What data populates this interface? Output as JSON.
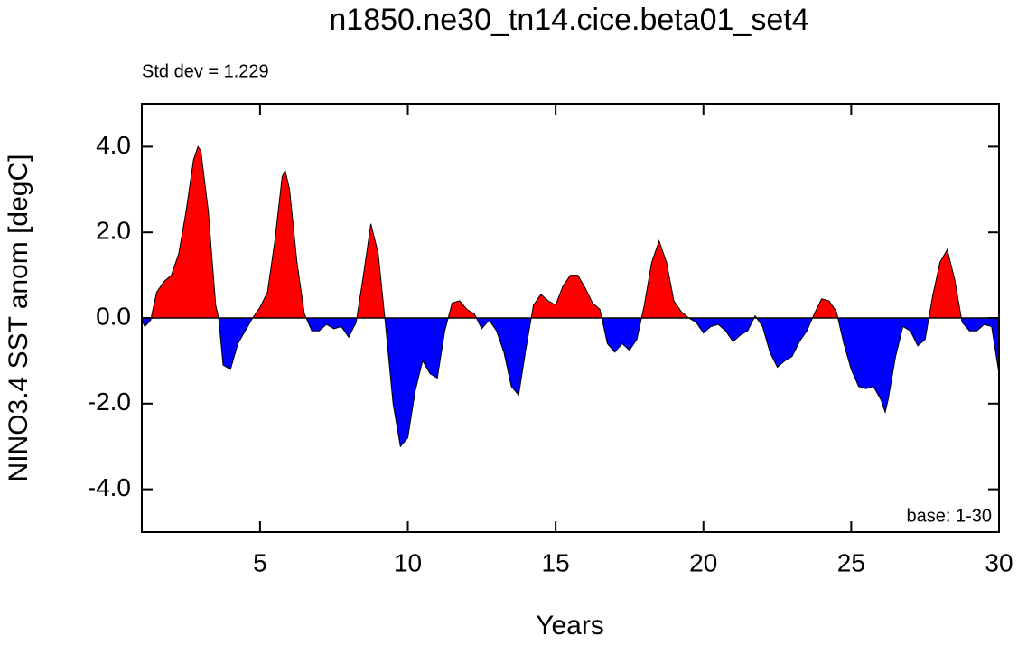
{
  "chart_data": {
    "type": "area",
    "title": "n1850.ne30_tn14.cice.beta01_set4",
    "x_label": "Years",
    "y_label": "NINO3.4 SST anom [degC]",
    "annotations": [
      "Std dev = 1.229",
      "base: 1-30"
    ],
    "xlim": [
      1,
      30
    ],
    "ylim": [
      -5,
      5
    ],
    "xticks": [
      5,
      10,
      15,
      20,
      25,
      30
    ],
    "yticks": [
      {
        "value": -4,
        "label": "-4.0"
      },
      {
        "value": -2,
        "label": "-2.0"
      },
      {
        "value": 0,
        "label": "0.0"
      },
      {
        "value": 2,
        "label": "2.0"
      },
      {
        "value": 4,
        "label": "4.0"
      }
    ],
    "colors": {
      "above": "#ff0000",
      "below": "#0000ff"
    },
    "x": [
      1.0,
      1.1,
      1.3,
      1.5,
      1.75,
      2.0,
      2.25,
      2.5,
      2.75,
      2.9,
      3.0,
      3.25,
      3.5,
      3.6,
      3.75,
      4.0,
      4.25,
      4.5,
      4.75,
      5.0,
      5.25,
      5.5,
      5.75,
      5.85,
      6.0,
      6.25,
      6.5,
      6.75,
      7.0,
      7.25,
      7.5,
      7.75,
      8.0,
      8.25,
      8.5,
      8.75,
      9.0,
      9.25,
      9.5,
      9.75,
      10.0,
      10.25,
      10.5,
      10.75,
      11.0,
      11.25,
      11.5,
      11.75,
      12.0,
      12.25,
      12.5,
      12.75,
      13.0,
      13.25,
      13.5,
      13.75,
      14.0,
      14.25,
      14.5,
      14.75,
      15.0,
      15.25,
      15.5,
      15.75,
      16.0,
      16.25,
      16.5,
      16.75,
      17.0,
      17.25,
      17.5,
      17.75,
      18.0,
      18.25,
      18.5,
      18.75,
      19.0,
      19.25,
      19.5,
      19.75,
      20.0,
      20.25,
      20.5,
      20.75,
      21.0,
      21.25,
      21.5,
      21.75,
      22.0,
      22.25,
      22.5,
      22.75,
      23.0,
      23.25,
      23.5,
      23.75,
      24.0,
      24.25,
      24.5,
      24.75,
      25.0,
      25.25,
      25.5,
      25.75,
      26.0,
      26.15,
      26.25,
      26.5,
      26.75,
      27.0,
      27.25,
      27.5,
      27.75,
      28.0,
      28.25,
      28.5,
      28.75,
      29.0,
      29.25,
      29.5,
      29.75,
      30.0
    ],
    "values": [
      -0.05,
      -0.2,
      -0.05,
      0.6,
      0.85,
      1.0,
      1.5,
      2.5,
      3.7,
      4.0,
      3.9,
      2.5,
      0.3,
      0.0,
      -1.1,
      -1.2,
      -0.6,
      -0.3,
      0.0,
      0.25,
      0.6,
      1.8,
      3.3,
      3.45,
      3.0,
      1.3,
      0.1,
      -0.3,
      -0.3,
      -0.15,
      -0.25,
      -0.2,
      -0.45,
      -0.1,
      1.0,
      2.2,
      1.5,
      -0.2,
      -2.0,
      -3.0,
      -2.8,
      -1.7,
      -1.0,
      -1.3,
      -1.4,
      -0.3,
      0.35,
      0.4,
      0.2,
      0.1,
      -0.25,
      -0.05,
      -0.3,
      -0.8,
      -1.6,
      -1.8,
      -0.7,
      0.3,
      0.55,
      0.4,
      0.3,
      0.75,
      1.0,
      1.0,
      0.7,
      0.35,
      0.2,
      -0.6,
      -0.8,
      -0.6,
      -0.75,
      -0.5,
      0.3,
      1.3,
      1.8,
      1.3,
      0.4,
      0.15,
      0.0,
      -0.1,
      -0.35,
      -0.2,
      -0.15,
      -0.3,
      -0.55,
      -0.4,
      -0.3,
      0.05,
      -0.2,
      -0.8,
      -1.15,
      -1.0,
      -0.9,
      -0.55,
      -0.3,
      0.1,
      0.45,
      0.4,
      0.15,
      -0.6,
      -1.2,
      -1.6,
      -1.65,
      -1.6,
      -1.9,
      -2.2,
      -1.9,
      -0.9,
      -0.2,
      -0.3,
      -0.65,
      -0.5,
      0.5,
      1.3,
      1.6,
      0.9,
      -0.1,
      -0.3,
      -0.3,
      -0.15,
      -0.2,
      -1.3
    ]
  }
}
